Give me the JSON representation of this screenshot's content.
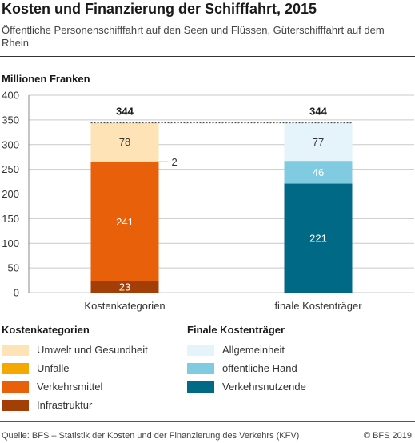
{
  "header": {
    "title": "Kosten und Finanzierung der Schifffahrt, 2015",
    "subtitle": "Öffentliche Personenschifffahrt auf den Seen und Flüssen, Güterschifffahrt auf dem Rhein"
  },
  "chart_data": {
    "type": "bar",
    "stacked": true,
    "ylabel": "Millionen Franken",
    "ylim": [
      0,
      400
    ],
    "yticks": [
      0,
      50,
      100,
      150,
      200,
      250,
      300,
      350,
      400
    ],
    "grid": true,
    "bars": [
      {
        "category": "Kostenkategorien",
        "total": 344,
        "segments": [
          {
            "name": "Infrastruktur",
            "value": 23,
            "color": "#a33e06",
            "label_color": "#ffffff"
          },
          {
            "name": "Verkehrsmittel",
            "value": 241,
            "color": "#e8600a",
            "label_color": "#ffffff"
          },
          {
            "name": "Unfälle",
            "value": 2,
            "color": "#f5a800",
            "label_color": "#333333",
            "label_outside": true
          },
          {
            "name": "Umwelt und Gesundheit",
            "value": 78,
            "color": "#fde3b5",
            "label_color": "#333333"
          }
        ]
      },
      {
        "category": "finale Kostenträger",
        "total": 344,
        "segments": [
          {
            "name": "Verkehrsnutzende",
            "value": 221,
            "color": "#006a86",
            "label_color": "#ffffff"
          },
          {
            "name": "öffentliche Hand",
            "value": 46,
            "color": "#80cbe0",
            "label_color": "#ffffff"
          },
          {
            "name": "Allgemeinheit",
            "value": 77,
            "color": "#e5f3fb",
            "label_color": "#333333"
          }
        ]
      }
    ]
  },
  "legends": {
    "left": {
      "title": "Kostenkategorien",
      "items": [
        {
          "label": "Umwelt und Gesundheit",
          "color": "#fde3b5"
        },
        {
          "label": "Unfälle",
          "color": "#f5a800"
        },
        {
          "label": "Verkehrsmittel",
          "color": "#e8600a"
        },
        {
          "label": "Infrastruktur",
          "color": "#a33e06"
        }
      ]
    },
    "right": {
      "title": "Finale Kostenträger",
      "items": [
        {
          "label": "Allgemeinheit",
          "color": "#e5f3fb"
        },
        {
          "label": "öffentliche Hand",
          "color": "#80cbe0"
        },
        {
          "label": "Verkehrsnutzende",
          "color": "#006a86"
        }
      ]
    }
  },
  "footer": {
    "source": "Quelle: BFS – Statistik der Kosten und der Finanzierung des Verkehrs (KFV)",
    "copyright": "© BFS 2019"
  }
}
